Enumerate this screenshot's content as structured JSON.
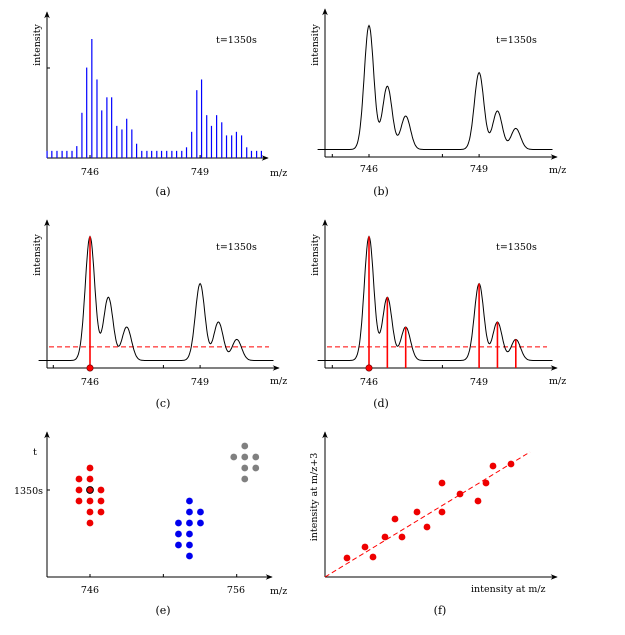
{
  "colors": {
    "stick": "#0000ff",
    "peak": "#ff0000",
    "curve": "#000000",
    "cluster_a": "#ee0000",
    "cluster_b": "#0000ee",
    "cluster_c": "#808080",
    "caption_b": "#1a1aa0"
  },
  "chart_data": [
    {
      "id": "a",
      "type": "bar",
      "caption": "(a)",
      "xlabel": "m/z",
      "ylabel": "intensity",
      "annotation": "t=1350s",
      "xticks": [
        746,
        749
      ],
      "xlim": [
        744.8,
        750.9
      ],
      "ylim": [
        0,
        120
      ],
      "mz": [
        744.83,
        744.96,
        745.1,
        745.24,
        745.37,
        745.51,
        745.64,
        745.78,
        745.91,
        746.05,
        746.19,
        746.32,
        746.46,
        746.59,
        746.73,
        746.87,
        747.0,
        747.14,
        747.27,
        747.41,
        747.55,
        747.68,
        747.82,
        747.95,
        748.09,
        748.23,
        748.36,
        748.5,
        748.63,
        748.77,
        748.91,
        749.04,
        749.18,
        749.31,
        749.45,
        749.59,
        749.72,
        749.86,
        749.99,
        750.13,
        750.27,
        750.4,
        750.54,
        750.67
      ],
      "intensity": [
        6,
        6,
        6,
        6,
        6,
        6,
        10,
        38,
        76,
        100,
        66,
        40,
        51,
        51,
        27,
        24,
        33,
        24,
        12,
        6,
        6,
        6,
        6,
        6,
        6,
        6,
        6,
        6,
        9,
        22,
        57,
        66,
        36,
        27,
        36,
        30,
        19,
        19,
        22,
        19,
        9,
        6,
        6,
        6
      ]
    },
    {
      "id": "b",
      "type": "line",
      "caption": "(b)",
      "xlabel": "m/z",
      "ylabel": "intensity",
      "annotation": "t=1350s",
      "xticks": [
        746,
        749
      ],
      "xlim": [
        744.8,
        750.9
      ],
      "peaks": {
        "mz": [
          746,
          746.5,
          747,
          749,
          749.5,
          750
        ],
        "intensity": [
          100,
          51,
          27,
          62,
          31,
          17
        ]
      }
    },
    {
      "id": "c",
      "type": "line",
      "caption": "(c)",
      "xlabel": "m/z",
      "ylabel": "intensity",
      "annotation": "t=1350s",
      "xticks": [
        746,
        749
      ],
      "xlim": [
        744.8,
        750.9
      ],
      "peaks": {
        "mz": [
          746,
          746.5,
          747,
          749,
          749.5,
          750
        ],
        "intensity": [
          100,
          51,
          27,
          62,
          31,
          17
        ]
      },
      "threshold": 11,
      "marked_peaks": [
        746
      ],
      "marker_mz": 746
    },
    {
      "id": "d",
      "type": "line",
      "caption": "(d)",
      "xlabel": "m/z",
      "ylabel": "intensity",
      "annotation": "t=1350s",
      "xticks": [
        746,
        749
      ],
      "xlim": [
        744.8,
        750.9
      ],
      "peaks": {
        "mz": [
          746,
          746.5,
          747,
          749,
          749.5,
          750
        ],
        "intensity": [
          100,
          51,
          27,
          62,
          31,
          17
        ]
      },
      "threshold": 11,
      "marked_peaks": [
        746,
        746.5,
        747,
        749,
        749.5,
        750
      ],
      "marker_mz": 746
    },
    {
      "id": "e",
      "type": "scatter",
      "caption": "(e)",
      "xlabel": "m/z",
      "ylabel": "t",
      "xticks": [
        746,
        751,
        756
      ],
      "xticklabels": [
        "746",
        "",
        "756"
      ],
      "ytick": 1350,
      "yticklabel": "1350s",
      "xlim": [
        743,
        760
      ],
      "clusters": [
        {
          "color": "cluster_a",
          "points": [
            [
              746,
              1370
            ],
            [
              745.25,
              1360
            ],
            [
              746,
              1360
            ],
            [
              745.25,
              1350
            ],
            [
              746,
              1350
            ],
            [
              746.75,
              1350
            ],
            [
              745.25,
              1340
            ],
            [
              746,
              1340
            ],
            [
              746.75,
              1340
            ],
            [
              746,
              1330
            ],
            [
              746.75,
              1330
            ],
            [
              746,
              1320
            ]
          ],
          "highlight": [
            746,
            1350
          ]
        },
        {
          "color": "cluster_b",
          "points": [
            [
              752.78,
              1340
            ],
            [
              752.78,
              1330
            ],
            [
              753.53,
              1330
            ],
            [
              752.03,
              1320
            ],
            [
              752.78,
              1320
            ],
            [
              753.53,
              1320
            ],
            [
              752.03,
              1310
            ],
            [
              752.78,
              1310
            ],
            [
              752.03,
              1300
            ],
            [
              752.78,
              1300
            ],
            [
              752.78,
              1290
            ]
          ]
        },
        {
          "color": "cluster_c",
          "points": [
            [
              756.55,
              1390
            ],
            [
              755.8,
              1380
            ],
            [
              756.55,
              1380
            ],
            [
              757.3,
              1380
            ],
            [
              756.55,
              1370
            ],
            [
              757.3,
              1370
            ],
            [
              756.55,
              1360
            ]
          ]
        }
      ]
    },
    {
      "id": "f",
      "type": "scatter",
      "caption": "(f)",
      "xlabel": "intensity at m/z",
      "ylabel": "intensity at m/z+3",
      "xlim": [
        0,
        2.3
      ],
      "ylim": [
        0,
        1.45
      ],
      "points": [
        [
          0.22,
          0.19
        ],
        [
          0.4,
          0.3
        ],
        [
          0.48,
          0.2
        ],
        [
          0.6,
          0.4
        ],
        [
          0.7,
          0.58
        ],
        [
          0.77,
          0.4
        ],
        [
          0.92,
          0.65
        ],
        [
          1.02,
          0.5
        ],
        [
          1.17,
          0.94
        ],
        [
          1.17,
          0.65
        ],
        [
          1.35,
          0.83
        ],
        [
          1.53,
          0.76
        ],
        [
          1.61,
          0.94
        ],
        [
          1.68,
          1.11
        ],
        [
          1.86,
          1.13
        ]
      ],
      "fit_line": {
        "from": [
          0,
          0
        ],
        "to": [
          2.05,
          1.25
        ],
        "style": "dashed"
      }
    }
  ]
}
